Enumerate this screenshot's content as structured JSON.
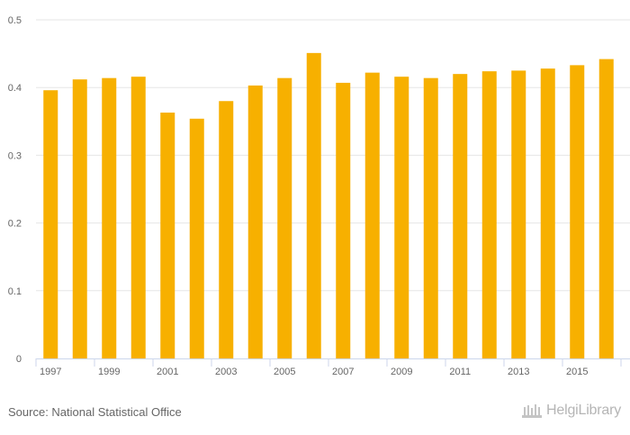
{
  "chart_data": {
    "type": "bar",
    "title": "",
    "xlabel": "",
    "ylabel": "",
    "ylim": [
      0,
      0.5
    ],
    "y_ticks": [
      0,
      0.1,
      0.2,
      0.3,
      0.4,
      0.5
    ],
    "y_tick_labels": [
      "0",
      "0.1",
      "0.2",
      "0.3",
      "0.4",
      "0.5"
    ],
    "categories": [
      "1997",
      "1998",
      "1999",
      "2000",
      "2001",
      "2002",
      "2003",
      "2004",
      "2005",
      "2006",
      "2007",
      "2008",
      "2009",
      "2010",
      "2011",
      "2012",
      "2013",
      "2014",
      "2015",
      "2016"
    ],
    "x_tick_labels": [
      "1997",
      "1999",
      "2001",
      "2003",
      "2005",
      "2007",
      "2009",
      "2011",
      "2013",
      "2015"
    ],
    "values": [
      0.396,
      0.412,
      0.414,
      0.416,
      0.363,
      0.354,
      0.38,
      0.403,
      0.414,
      0.451,
      0.407,
      0.422,
      0.416,
      0.414,
      0.42,
      0.424,
      0.425,
      0.428,
      0.433,
      0.442
    ],
    "bar_color": "#f7b000",
    "grid": true
  },
  "footer": {
    "source": "Source: National Statistical Office",
    "logo_text": "HelgiLibrary"
  }
}
